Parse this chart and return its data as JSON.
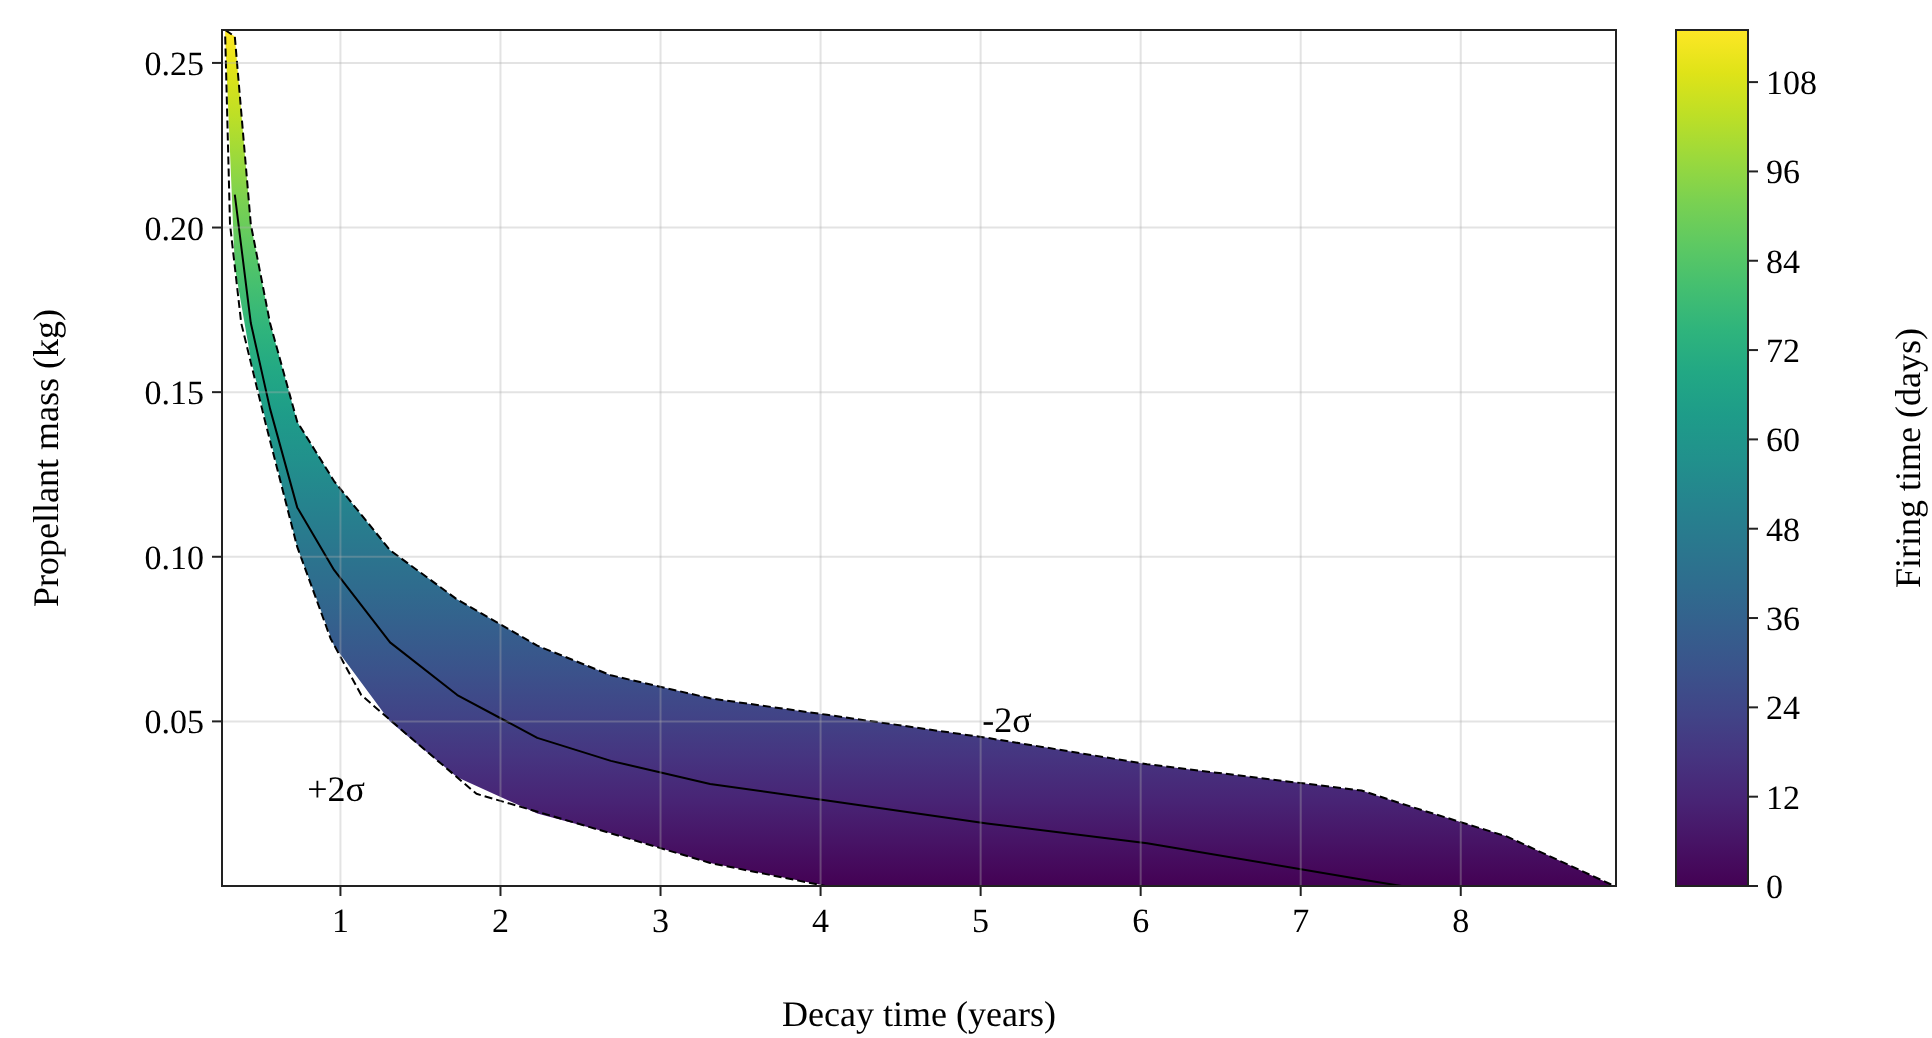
{
  "chart_data": {
    "type": "line",
    "xlabel": "Decay time (years)",
    "ylabel": "Propellant mass (kg)",
    "clabel": "Firing time (days)",
    "xlim": [
      0.26,
      8.97
    ],
    "xticks": [
      1,
      2,
      3,
      4,
      5,
      6,
      7,
      8
    ],
    "ylim": [
      0,
      0.26
    ],
    "yticks": [
      {
        "value": 0.05,
        "label": "0.05"
      },
      {
        "value": 0.1,
        "label": "0.10"
      },
      {
        "value": 0.15,
        "label": "0.15"
      },
      {
        "value": 0.2,
        "label": "0.20"
      },
      {
        "value": 0.25,
        "label": "0.25"
      }
    ],
    "clim": [
      0,
      115
    ],
    "cticks": [
      0,
      12,
      24,
      36,
      48,
      60,
      72,
      84,
      96,
      108
    ],
    "grid": true,
    "series": [
      {
        "color": "#000000",
        "line_style": "solid",
        "x": [
          0.28,
          0.34,
          0.44,
          0.56,
          0.73,
          0.96,
          1.31,
          1.73,
          2.23,
          2.69,
          3.31,
          4.04,
          5.04,
          6.04,
          7.38,
          7.63,
          8.29,
          8.96
        ],
        "values": [
          null,
          0.21,
          0.171,
          0.145,
          0.115,
          0.096,
          0.074,
          0.058,
          0.045,
          0.038,
          0.031,
          0.026,
          0.019,
          0.013,
          0.002,
          0,
          null,
          null
        ],
        "upper": [
          0.26,
          0.258,
          0.201,
          0.171,
          0.141,
          0.123,
          0.102,
          0.087,
          0.073,
          0.064,
          0.057,
          0.052,
          0.045,
          0.037,
          0.029,
          0.025,
          0.015,
          0
        ],
        "lower": [
          0.258,
          0.188,
          0.16,
          0.136,
          0.103,
          0.073,
          0.05,
          0.033,
          0.022,
          0.016,
          0.007,
          0,
          0,
          0,
          0,
          0,
          0,
          0
        ]
      },
      {
        "color": "#000000",
        "line_style": "dashed",
        "x": [
          0.28,
          0.34,
          0.44,
          0.56,
          0.73,
          0.96,
          1.31,
          1.73,
          2.23,
          2.69,
          3.31,
          4.04,
          5.04,
          6.04,
          7.38,
          7.63,
          8.29,
          8.96
        ],
        "values": [
          0.26,
          0.258,
          0.201,
          0.171,
          0.141,
          0.123,
          0.102,
          0.087,
          0.073,
          0.064,
          0.057,
          0.052,
          0.045,
          0.037,
          0.029,
          0.025,
          0.015,
          0
        ]
      },
      {
        "color": "#000000",
        "line_style": "dashed",
        "x": [
          0.28,
          0.31,
          0.38,
          0.53,
          0.73,
          0.94,
          1.13,
          1.44,
          1.85,
          2.69,
          3.31,
          4.03,
          8.96
        ],
        "values": [
          0.258,
          0.201,
          0.171,
          0.141,
          0.103,
          0.075,
          0.058,
          0.045,
          0.028,
          0.016,
          0.007,
          0,
          0
        ]
      }
    ],
    "annotations": [
      {
        "text": "-2σ",
        "x": 5.04,
        "y": 0.045
      },
      {
        "text": "+2σ",
        "x": 1.31,
        "y": 0.05
      }
    ]
  }
}
